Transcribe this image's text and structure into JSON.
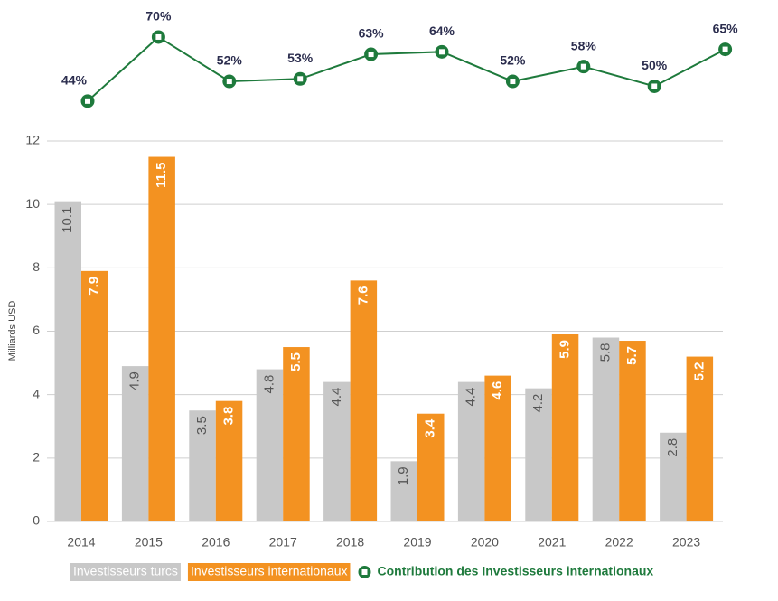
{
  "chart_data": {
    "type": "bar",
    "y_axis_label": "Milliards USD",
    "categories": [
      "2014",
      "2015",
      "2016",
      "2017",
      "2018",
      "2019",
      "2020",
      "2021",
      "2022",
      "2023"
    ],
    "series": [
      {
        "name": "Investisseurs turcs",
        "color": "#c8c8c8",
        "values": [
          10.1,
          4.9,
          3.5,
          4.8,
          4.4,
          1.9,
          4.4,
          4.2,
          5.8,
          2.8
        ]
      },
      {
        "name": "Investisseurs internationaux",
        "color": "#f39221",
        "values": [
          7.9,
          11.5,
          3.8,
          5.5,
          7.6,
          3.4,
          4.6,
          5.9,
          5.7,
          5.2
        ]
      },
      {
        "name": "Contribution des Investisseurs internationaux",
        "type": "line",
        "axis": "y2",
        "color": "#1e7a3c",
        "values": [
          44,
          70,
          52,
          53,
          63,
          64,
          52,
          58,
          50,
          65
        ],
        "value_labels": [
          "44%",
          "70%",
          "52%",
          "53%",
          "63%",
          "64%",
          "52%",
          "58%",
          "50%",
          "65%"
        ]
      }
    ],
    "ylim": [
      0,
      12
    ],
    "yticks": [
      0,
      2,
      4,
      6,
      8,
      10,
      12
    ],
    "y2lim": [
      30,
      80
    ],
    "grid": true
  }
}
